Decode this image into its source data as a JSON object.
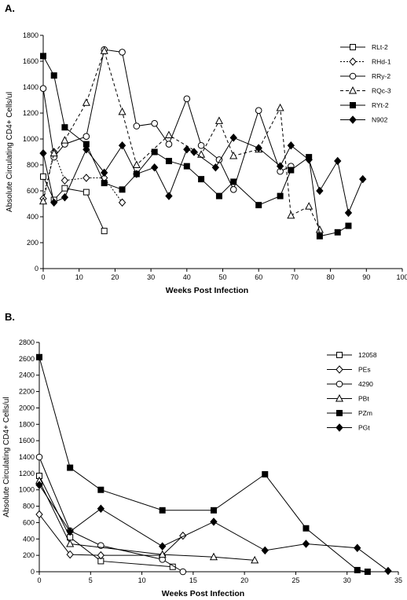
{
  "chart_data": [
    {
      "type": "line",
      "panel_label": "A.",
      "xlabel": "Weeks Post Infection",
      "ylabel": "Absolute Circulating CD4+ Cells/ul",
      "xlim": [
        0,
        100
      ],
      "ylim": [
        0,
        1800
      ],
      "xticks": [
        0,
        10,
        20,
        30,
        40,
        50,
        60,
        70,
        80,
        90,
        100
      ],
      "yticks": [
        0,
        200,
        400,
        600,
        800,
        1000,
        1200,
        1400,
        1600,
        1800
      ],
      "legend_position": "top-right",
      "series": [
        {
          "name": "RLt-2",
          "marker": "square-open",
          "line": "solid",
          "x": [
            0,
            3,
            6,
            12,
            17
          ],
          "y": [
            710,
            530,
            620,
            590,
            290
          ]
        },
        {
          "name": "RHd-1",
          "marker": "diamond-open",
          "line": "dotted",
          "x": [
            0,
            3,
            6,
            12,
            17,
            22
          ],
          "y": [
            540,
            900,
            680,
            700,
            700,
            510
          ]
        },
        {
          "name": "RRy-2",
          "marker": "circle-open",
          "line": "solid",
          "x": [
            0,
            3,
            6,
            12,
            17,
            22,
            26,
            31,
            35,
            40,
            44,
            49,
            53,
            60,
            66,
            69
          ],
          "y": [
            1390,
            860,
            960,
            1020,
            1690,
            1670,
            1100,
            1120,
            960,
            1310,
            950,
            840,
            610,
            1220,
            750,
            790
          ]
        },
        {
          "name": "RQc-3",
          "marker": "triangle-open",
          "line": "dashed",
          "x": [
            0,
            3,
            6,
            12,
            17,
            22,
            26,
            35,
            44,
            49,
            53,
            60,
            66,
            69,
            74,
            77
          ],
          "y": [
            520,
            890,
            990,
            1280,
            1680,
            1210,
            800,
            1030,
            880,
            1140,
            870,
            920,
            1240,
            410,
            480,
            300
          ]
        },
        {
          "name": "RYt-2",
          "marker": "square-filled",
          "line": "solid",
          "x": [
            0,
            3,
            6,
            12,
            17,
            22,
            26,
            31,
            35,
            40,
            44,
            49,
            53,
            60,
            66,
            69,
            74,
            77,
            82,
            85
          ],
          "y": [
            1640,
            1490,
            1090,
            960,
            660,
            610,
            730,
            900,
            830,
            790,
            690,
            560,
            670,
            490,
            560,
            760,
            860,
            250,
            280,
            330
          ]
        },
        {
          "name": "N902",
          "marker": "diamond-filled",
          "line": "solid",
          "x": [
            0,
            3,
            6,
            12,
            17,
            22,
            26,
            31,
            35,
            40,
            42,
            48,
            53,
            60,
            66,
            69,
            74,
            77,
            82,
            85,
            89
          ],
          "y": [
            890,
            510,
            550,
            920,
            740,
            950,
            730,
            780,
            560,
            920,
            900,
            780,
            1010,
            930,
            790,
            950,
            840,
            600,
            830,
            430,
            690
          ]
        }
      ]
    },
    {
      "type": "line",
      "panel_label": "B.",
      "xlabel": "Weeks Post Infection",
      "ylabel": "Absolute Circulating CD4+ Cells/ul",
      "xlim": [
        0,
        35
      ],
      "ylim": [
        0,
        2800
      ],
      "xticks": [
        0,
        5,
        10,
        15,
        20,
        25,
        30,
        35
      ],
      "yticks": [
        0,
        200,
        400,
        600,
        800,
        1000,
        1200,
        1400,
        1600,
        1800,
        2000,
        2200,
        2400,
        2600,
        2800
      ],
      "legend_position": "top-right",
      "series": [
        {
          "name": "12058",
          "marker": "square-open",
          "line": "solid",
          "x": [
            0,
            3,
            6,
            13
          ],
          "y": [
            1170,
            420,
            130,
            60
          ]
        },
        {
          "name": "PEs",
          "marker": "diamond-open",
          "line": "solid",
          "x": [
            0,
            3,
            6,
            12,
            14
          ],
          "y": [
            700,
            210,
            200,
            200,
            440
          ]
        },
        {
          "name": "4290",
          "marker": "circle-open",
          "line": "solid",
          "x": [
            0,
            3,
            6,
            12,
            14
          ],
          "y": [
            1400,
            500,
            320,
            150,
            0
          ]
        },
        {
          "name": "PBt",
          "marker": "triangle-open",
          "line": "solid",
          "x": [
            0,
            3,
            12,
            17,
            21
          ],
          "y": [
            1110,
            340,
            210,
            180,
            140
          ]
        },
        {
          "name": "PZm",
          "marker": "square-filled",
          "line": "solid",
          "x": [
            0,
            3,
            6,
            12,
            17,
            22,
            26,
            31,
            32
          ],
          "y": [
            2620,
            1270,
            1000,
            750,
            750,
            1190,
            530,
            20,
            0
          ]
        },
        {
          "name": "PGt",
          "marker": "diamond-filled",
          "line": "solid",
          "x": [
            0,
            3,
            6,
            12,
            17,
            22,
            26,
            31,
            34
          ],
          "y": [
            1060,
            490,
            770,
            310,
            610,
            260,
            340,
            290,
            10
          ]
        }
      ]
    }
  ]
}
